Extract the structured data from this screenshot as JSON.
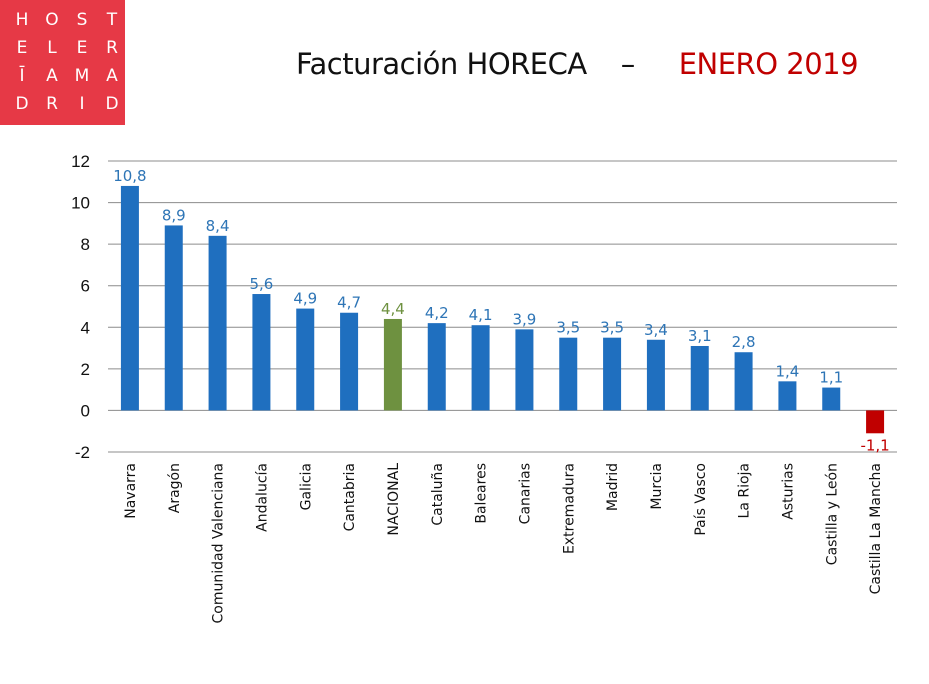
{
  "logo": {
    "rows": [
      [
        "H",
        "O",
        "S",
        "T"
      ],
      [
        "E",
        "L",
        "E",
        "R"
      ],
      [
        "Ī",
        "A",
        "M",
        "A"
      ],
      [
        "D",
        "R",
        "I",
        "D"
      ]
    ],
    "color": "#e63946"
  },
  "header": {
    "title": "Facturación HORECA",
    "separator": "–",
    "period": "ENERO 2019"
  },
  "chart_data": {
    "type": "bar",
    "categories": [
      "Navarra",
      "Aragón",
      "Comunidad Valenciana",
      "Andalucía",
      "Galicia",
      "Cantabria",
      "NACIONAL",
      "Cataluña",
      "Baleares",
      "Canarias",
      "Extremadura",
      "Madrid",
      "Murcia",
      "País Vasco",
      "La Rioja",
      "Asturias",
      "Castilla y León",
      "Castilla La Mancha"
    ],
    "values": [
      10.8,
      8.9,
      8.4,
      5.6,
      4.9,
      4.7,
      4.4,
      4.2,
      4.1,
      3.9,
      3.5,
      3.5,
      3.4,
      3.1,
      2.8,
      1.4,
      1.1,
      -1.1
    ],
    "value_labels": [
      "10,8",
      "8,9",
      "8,4",
      "5,6",
      "4,9",
      "4,7",
      "4,4",
      "4,2",
      "4,1",
      "3,9",
      "3,5",
      "3,5",
      "3,4",
      "3,1",
      "2,8",
      "1,4",
      "1,1",
      "-1,1"
    ],
    "ylim": [
      -2,
      12
    ],
    "yticks": [
      12,
      10,
      8,
      6,
      4,
      2,
      0,
      -2
    ],
    "ytick_labels": [
      "12",
      "10",
      "8",
      "6",
      "4",
      "2",
      "0",
      "-2"
    ],
    "grid": true,
    "legend": false,
    "colors": {
      "default": "#1f6fbf",
      "national": "#6e9140",
      "negative": "#c00000",
      "label_default": "#2e75b6",
      "label_national": "#6e9140",
      "label_negative": "#c00000"
    }
  }
}
